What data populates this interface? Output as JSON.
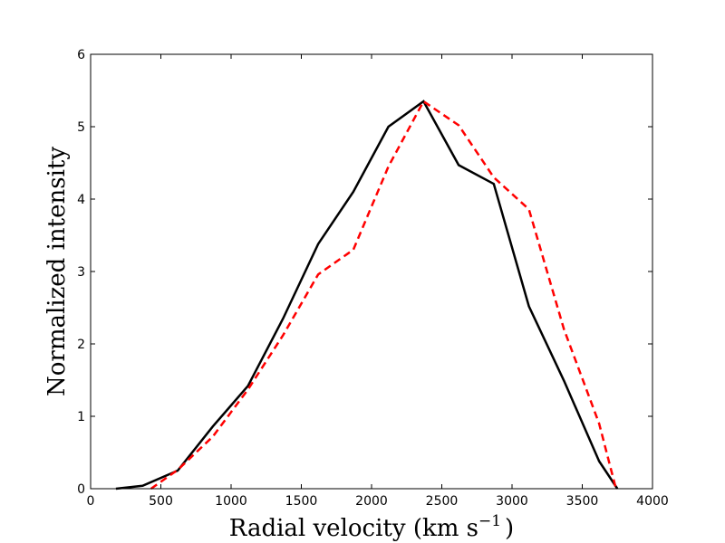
{
  "chart_data": {
    "type": "line",
    "xlabel": "Radial velocity (km s",
    "xlabel_exponent": "−1",
    "xlabel_suffix": ")",
    "ylabel": "Normalized intensity",
    "xlim": [
      0,
      4000
    ],
    "ylim": [
      0,
      6
    ],
    "x_ticks": [
      "0",
      "500",
      "1000",
      "1500",
      "2000",
      "2500",
      "3000",
      "3500",
      "4000"
    ],
    "y_ticks": [
      "0",
      "1",
      "2",
      "3",
      "4",
      "5",
      "6"
    ],
    "grid": false,
    "series": [
      {
        "style": "solid",
        "color": "#000000",
        "x": [
          180,
          370,
          620,
          870,
          1120,
          1370,
          1620,
          1870,
          2120,
          2370,
          2620,
          2870,
          3120,
          3370,
          3620,
          3750
        ],
        "y": [
          0.0,
          0.04,
          0.25,
          0.86,
          1.42,
          2.35,
          3.38,
          4.1,
          5.0,
          5.35,
          4.47,
          4.21,
          2.52,
          1.49,
          0.38,
          0.0
        ]
      },
      {
        "style": "dashed",
        "color": "#ff0000",
        "x": [
          430,
          620,
          870,
          1120,
          1370,
          1620,
          1870,
          2120,
          2370,
          2620,
          2870,
          3120,
          3370,
          3620,
          3740
        ],
        "y": [
          0.0,
          0.26,
          0.72,
          1.37,
          2.12,
          2.96,
          3.3,
          4.45,
          5.35,
          5.02,
          4.3,
          3.86,
          2.2,
          0.9,
          0.0
        ]
      }
    ]
  }
}
